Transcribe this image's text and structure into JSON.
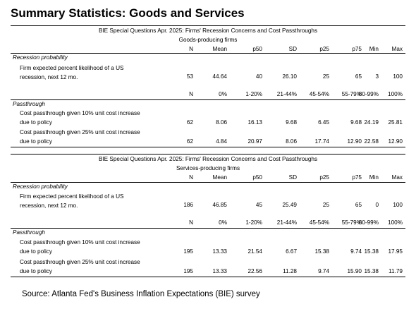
{
  "title": "Summary Statistics: Goods and Services",
  "goods": {
    "header1": "BIE Special Questions Apr. 2025: Firms' Recession Concerns and Cost Passthroughs",
    "header2": "Goods-producing firms",
    "stat_columns": [
      "N",
      "Mean",
      "p50",
      "SD",
      "p25",
      "p75",
      "Min",
      "Max"
    ],
    "recession_section": "Recession probability",
    "recession_label_1": "Firm expected percent likelihood of a US",
    "recession_label_2": "recession, next 12 mo.",
    "recession_values": [
      "53",
      "44.64",
      "40",
      "26.10",
      "25",
      "65",
      "3",
      "100"
    ],
    "bucket_columns": [
      "N",
      "0%",
      "1-20%",
      "21-44%",
      "45-54%",
      "55-79%",
      "80-99%",
      "100%"
    ],
    "pass_section": "Passthrough",
    "pass10_label_1": "Cost passthrough given 10% unit cost increase",
    "pass10_label_2": "due to policy",
    "pass10_values": [
      "62",
      "8.06",
      "16.13",
      "9.68",
      "6.45",
      "9.68",
      "24.19",
      "25.81"
    ],
    "pass25_label_1": "Cost passthrough given 25% unit cost increase",
    "pass25_label_2": "due to policy",
    "pass25_values": [
      "62",
      "4.84",
      "20.97",
      "8.06",
      "17.74",
      "12.90",
      "22.58",
      "12.90"
    ]
  },
  "services": {
    "header1": "BIE Special Questions Apr. 2025: Firms' Recession Concerns and Cost Passthroughs",
    "header2": "Services-producing firms",
    "stat_columns": [
      "N",
      "Mean",
      "p50",
      "SD",
      "p25",
      "p75",
      "Min",
      "Max"
    ],
    "recession_section": "Recession probability",
    "recession_label_1": "Firm expected percent likelihood of a US",
    "recession_label_2": "recession, next 12 mo.",
    "recession_values": [
      "186",
      "46.85",
      "45",
      "25.49",
      "25",
      "65",
      "0",
      "100"
    ],
    "bucket_columns": [
      "N",
      "0%",
      "1-20%",
      "21-44%",
      "45-54%",
      "55-79%",
      "80-99%",
      "100%"
    ],
    "pass_section": "Passthrough",
    "pass10_label_1": "Cost passthrough given 10% unit cost increase",
    "pass10_label_2": "due to policy",
    "pass10_values": [
      "195",
      "13.33",
      "21.54",
      "6.67",
      "15.38",
      "9.74",
      "15.38",
      "17.95"
    ],
    "pass25_label_1": "Cost passthrough given 25% unit cost increase",
    "pass25_label_2": "due to policy",
    "pass25_values": [
      "195",
      "13.33",
      "22.56",
      "11.28",
      "9.74",
      "15.90",
      "15.38",
      "11.79"
    ]
  },
  "source": "Source: Atlanta Fed's Business Inflation Expectations (BIE) survey"
}
